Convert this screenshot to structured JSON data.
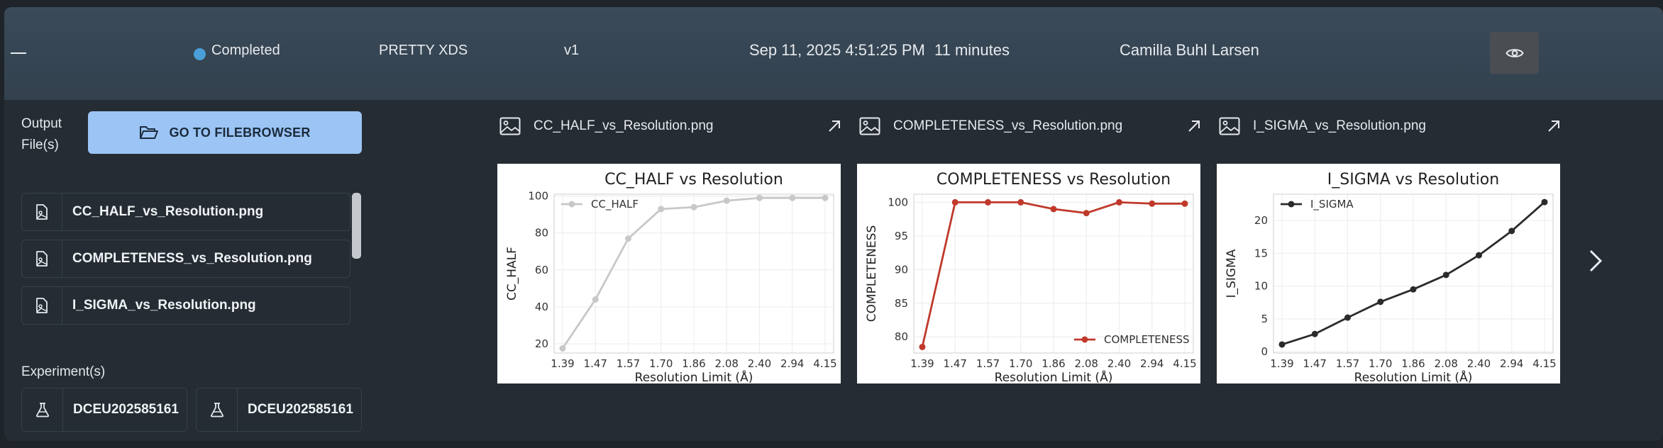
{
  "header": {
    "status": "Completed",
    "tool": "PRETTY XDS",
    "version": "v1",
    "datetime": "Sep 11, 2025 4:51:25 PM",
    "duration": "11 minutes",
    "user": "Camilla Buhl Larsen"
  },
  "left": {
    "output_label_line1": "Output",
    "output_label_line2": "File(s)",
    "filebrowser_label": "GO TO FILEBROWSER",
    "files": [
      "CC_HALF_vs_Resolution.png",
      "COMPLETENESS_vs_Resolution.png",
      "I_SIGMA_vs_Resolution.png"
    ],
    "experiments_label": "Experiment(s)",
    "experiments": [
      "DCEU202585161",
      "DCEU202585161"
    ]
  },
  "cards": [
    {
      "filename": "CC_HALF_vs_Resolution.png"
    },
    {
      "filename": "COMPLETENESS_vs_Resolution.png"
    },
    {
      "filename": "I_SIGMA_vs_Resolution.png"
    }
  ],
  "chart_data": [
    {
      "type": "line",
      "title": "CC_HALF vs Resolution",
      "xlabel": "Resolution Limit (Å)",
      "ylabel": "CC_HALF",
      "categories": [
        "1.39",
        "1.47",
        "1.57",
        "1.70",
        "1.86",
        "2.08",
        "2.40",
        "2.94",
        "4.15"
      ],
      "series": [
        {
          "name": "CC_HALF",
          "values": [
            17.5,
            44,
            77,
            93,
            94,
            97.5,
            99,
            99,
            99
          ],
          "color": "#c8c8c8"
        }
      ],
      "ylim": [
        15,
        101
      ],
      "yticks": [
        20,
        40,
        60,
        80,
        100
      ],
      "legend": "top-left",
      "grid": true
    },
    {
      "type": "line",
      "title": "COMPLETENESS vs Resolution",
      "xlabel": "Resolution Limit (Å)",
      "ylabel": "COMPLETENESS",
      "categories": [
        "1.39",
        "1.47",
        "1.57",
        "1.70",
        "1.86",
        "2.08",
        "2.40",
        "2.94",
        "4.15"
      ],
      "series": [
        {
          "name": "COMPLETENESS",
          "values": [
            78.5,
            100,
            100,
            100,
            99,
            98.4,
            100,
            99.8,
            99.8
          ],
          "color": "#c0392b"
        }
      ],
      "ylim": [
        77.6,
        101.2
      ],
      "yticks": [
        80,
        85,
        90,
        95,
        100
      ],
      "legend": "bottom-right",
      "grid": true
    },
    {
      "type": "line",
      "title": "I_SIGMA vs Resolution",
      "xlabel": "Resolution Limit (Å)",
      "ylabel": "I_SIGMA",
      "categories": [
        "1.39",
        "1.47",
        "1.57",
        "1.70",
        "1.86",
        "2.08",
        "2.40",
        "2.94",
        "4.15"
      ],
      "series": [
        {
          "name": "I_SIGMA",
          "values": [
            1.1,
            2.7,
            5.2,
            7.6,
            9.5,
            11.7,
            14.7,
            18.4,
            22.8
          ],
          "color": "#2b2b2b"
        }
      ],
      "ylim": [
        -0.2,
        24
      ],
      "yticks": [
        0,
        5,
        10,
        15,
        20
      ],
      "legend": "top-left",
      "grid": true
    }
  ]
}
